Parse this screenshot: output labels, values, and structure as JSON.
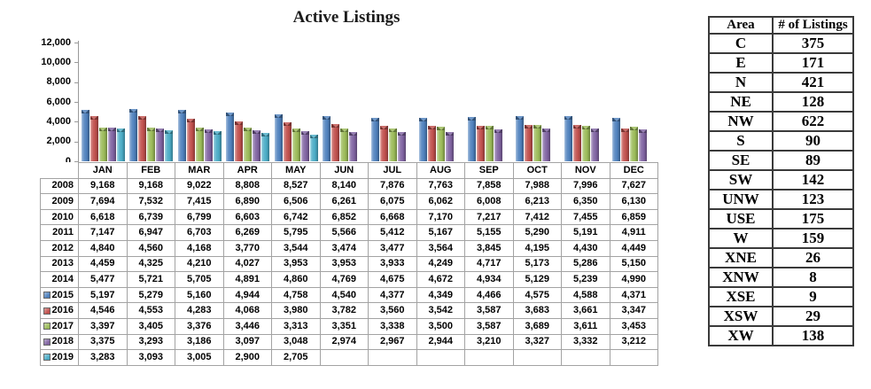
{
  "chart_data": {
    "type": "bar",
    "title": "Active Listings",
    "xlabel": "",
    "ylabel": "",
    "categories": [
      "JAN",
      "FEB",
      "MAR",
      "APR",
      "MAY",
      "JUN",
      "JUL",
      "AUG",
      "SEP",
      "OCT",
      "NOV",
      "DEC"
    ],
    "ylim": [
      0,
      12000
    ],
    "ytick_labels": [
      "12,000",
      "10,000",
      "8,000",
      "6,000",
      "4,000",
      "2,000",
      "0"
    ],
    "grid": false,
    "legend_position": "markers-in-data-table",
    "series": [
      {
        "name": "2015",
        "color": "#4F81BD",
        "values": [
          5197,
          5279,
          5160,
          4944,
          4758,
          4540,
          4377,
          4349,
          4466,
          4575,
          4588,
          4371
        ]
      },
      {
        "name": "2016",
        "color": "#C0504D",
        "values": [
          4546,
          4553,
          4283,
          4068,
          3980,
          3782,
          3560,
          3542,
          3587,
          3683,
          3661,
          3347
        ]
      },
      {
        "name": "2017",
        "color": "#9BBB59",
        "values": [
          3397,
          3405,
          3376,
          3446,
          3313,
          3351,
          3338,
          3500,
          3587,
          3689,
          3611,
          3453
        ]
      },
      {
        "name": "2018",
        "color": "#8064A2",
        "values": [
          3375,
          3293,
          3186,
          3097,
          3048,
          2974,
          2967,
          2944,
          3210,
          3327,
          3332,
          3212
        ]
      },
      {
        "name": "2019",
        "color": "#4BACC6",
        "values": [
          3283,
          3093,
          3005,
          2900,
          2705,
          null,
          null,
          null,
          null,
          null,
          null,
          null
        ]
      }
    ]
  },
  "data_table": {
    "columns": [
      "JAN",
      "FEB",
      "MAR",
      "APR",
      "MAY",
      "JUN",
      "JUL",
      "AUG",
      "SEP",
      "OCT",
      "NOV",
      "DEC"
    ],
    "rows": [
      {
        "year": "2008",
        "marker": null,
        "values": [
          "9,168",
          "9,168",
          "9,022",
          "8,808",
          "8,527",
          "8,140",
          "7,876",
          "7,763",
          "7,858",
          "7,988",
          "7,996",
          "7,627"
        ]
      },
      {
        "year": "2009",
        "marker": null,
        "values": [
          "7,694",
          "7,532",
          "7,415",
          "6,890",
          "6,506",
          "6,261",
          "6,075",
          "6,062",
          "6,008",
          "6,213",
          "6,350",
          "6,130"
        ]
      },
      {
        "year": "2010",
        "marker": null,
        "values": [
          "6,618",
          "6,739",
          "6,799",
          "6,603",
          "6,742",
          "6,852",
          "6,668",
          "7,170",
          "7,217",
          "7,412",
          "7,455",
          "6,859"
        ]
      },
      {
        "year": "2011",
        "marker": null,
        "values": [
          "7,147",
          "6,947",
          "6,703",
          "6,269",
          "5,795",
          "5,566",
          "5,412",
          "5,167",
          "5,155",
          "5,290",
          "5,191",
          "4,911"
        ]
      },
      {
        "year": "2012",
        "marker": null,
        "values": [
          "4,840",
          "4,560",
          "4,168",
          "3,770",
          "3,544",
          "3,474",
          "3,477",
          "3,564",
          "3,845",
          "4,195",
          "4,430",
          "4,449"
        ]
      },
      {
        "year": "2013",
        "marker": null,
        "values": [
          "4,459",
          "4,325",
          "4,210",
          "4,027",
          "3,953",
          "3,953",
          "3,933",
          "4,249",
          "4,717",
          "5,173",
          "5,286",
          "5,150"
        ]
      },
      {
        "year": "2014",
        "marker": null,
        "values": [
          "5,477",
          "5,721",
          "5,705",
          "4,891",
          "4,860",
          "4,769",
          "4,675",
          "4,672",
          "4,934",
          "5,129",
          "5,239",
          "4,990"
        ]
      },
      {
        "year": "2015",
        "marker": "#4F81BD",
        "values": [
          "5,197",
          "5,279",
          "5,160",
          "4,944",
          "4,758",
          "4,540",
          "4,377",
          "4,349",
          "4,466",
          "4,575",
          "4,588",
          "4,371"
        ]
      },
      {
        "year": "2016",
        "marker": "#C0504D",
        "values": [
          "4,546",
          "4,553",
          "4,283",
          "4,068",
          "3,980",
          "3,782",
          "3,560",
          "3,542",
          "3,587",
          "3,683",
          "3,661",
          "3,347"
        ]
      },
      {
        "year": "2017",
        "marker": "#9BBB59",
        "values": [
          "3,397",
          "3,405",
          "3,376",
          "3,446",
          "3,313",
          "3,351",
          "3,338",
          "3,500",
          "3,587",
          "3,689",
          "3,611",
          "3,453"
        ]
      },
      {
        "year": "2018",
        "marker": "#8064A2",
        "values": [
          "3,375",
          "3,293",
          "3,186",
          "3,097",
          "3,048",
          "2,974",
          "2,967",
          "2,944",
          "3,210",
          "3,327",
          "3,332",
          "3,212"
        ]
      },
      {
        "year": "2019",
        "marker": "#4BACC6",
        "values": [
          "3,283",
          "3,093",
          "3,005",
          "2,900",
          "2,705",
          "",
          "",
          "",
          "",
          "",
          "",
          ""
        ]
      }
    ]
  },
  "area_table": {
    "headers": [
      "Area",
      "# of Listings"
    ],
    "rows": [
      [
        "C",
        "375"
      ],
      [
        "E",
        "171"
      ],
      [
        "N",
        "421"
      ],
      [
        "NE",
        "128"
      ],
      [
        "NW",
        "622"
      ],
      [
        "S",
        "90"
      ],
      [
        "SE",
        "89"
      ],
      [
        "SW",
        "142"
      ],
      [
        "UNW",
        "123"
      ],
      [
        "USE",
        "175"
      ],
      [
        "W",
        "159"
      ],
      [
        "XNE",
        "26"
      ],
      [
        "XNW",
        "8"
      ],
      [
        "XSE",
        "9"
      ],
      [
        "XSW",
        "29"
      ],
      [
        "XW",
        "138"
      ]
    ]
  }
}
